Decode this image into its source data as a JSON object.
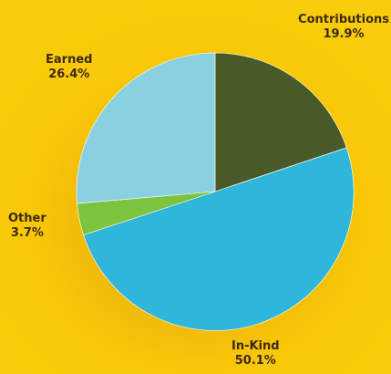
{
  "chart_data": {
    "type": "pie",
    "slices": [
      {
        "label": "Contributions",
        "value": 19.9,
        "value_text": "19.9%",
        "color": "#485a28"
      },
      {
        "label": "In-Kind",
        "value": 50.1,
        "value_text": "50.1%",
        "color": "#2fb6d8"
      },
      {
        "label": "Other",
        "value": 3.7,
        "value_text": "3.7%",
        "color": "#7cc340"
      },
      {
        "label": "Earned",
        "value": 26.4,
        "value_text": "26.4%",
        "color": "#8ad0e0"
      }
    ],
    "start_angle": "12 o'clock",
    "direction": "clockwise",
    "background_color": "#f9cd0b",
    "label_color": "#3c2a12"
  }
}
